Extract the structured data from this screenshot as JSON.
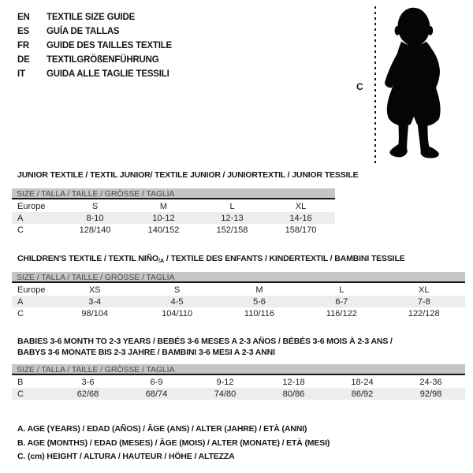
{
  "languages": [
    {
      "code": "EN",
      "label": "TEXTILE SIZE GUIDE"
    },
    {
      "code": "ES",
      "label": "GUÍA DE TALLAS"
    },
    {
      "code": "FR",
      "label": "GUIDE DES TAILLES TEXTILE"
    },
    {
      "code": "DE",
      "label": "TEXTILGRÖßENFÜHRUNG"
    },
    {
      "code": "IT",
      "label": "GUIDA ALLE TAGLIE TESSILI"
    }
  ],
  "figure": {
    "marker_label": "C",
    "image": "black silhouette of a standing toddler"
  },
  "junior": {
    "title": "JUNIOR TEXTILE / TEXTIL JUNIOR/ TEXTILE JUNIOR / JUNIORTEXTIL / JUNIOR TESSILE",
    "size_bar": "SIZE / TALLA / TAILLE / GRÖSSE / TAGLIA",
    "table": {
      "rows": [
        {
          "cells": [
            "Europe",
            "S",
            "M",
            "L",
            "XL"
          ],
          "shaded": false
        },
        {
          "cells": [
            "A",
            "8-10",
            "10-12",
            "12-13",
            "14-16"
          ],
          "shaded": true
        },
        {
          "cells": [
            "C",
            "128/140",
            "140/152",
            "152/158",
            "158/170"
          ],
          "shaded": false
        }
      ]
    }
  },
  "children": {
    "title_pre": "CHILDREN'S TEXTILE / TEXTIL NIÑO",
    "title_sub": "/A",
    "title_post": " / TEXTILE DES ENFANTS / KINDERTEXTIL / BAMBINI TESSILE",
    "size_bar": "SIZE / TALLA / TAILLE / GRÖSSE / TAGLIA",
    "table": {
      "rows": [
        {
          "cells": [
            "Europe",
            "XS",
            "S",
            "M",
            "L",
            "XL"
          ],
          "shaded": false
        },
        {
          "cells": [
            "A",
            "3-4",
            "4-5",
            "5-6",
            "6-7",
            "7-8"
          ],
          "shaded": true
        },
        {
          "cells": [
            "C",
            "98/104",
            "104/110",
            "110/116",
            "116/122",
            "122/128"
          ],
          "shaded": false
        }
      ]
    }
  },
  "babies": {
    "title_line1": "BABIES 3-6 MONTH TO 2-3 YEARS / BEBÉS 3-6 MESES A 2-3 AÑOS / BÉBÉS 3-6 MOIS À 2-3 ANS /",
    "title_line2": "BABYS 3-6 MONATE BIS 2-3 JAHRE / BAMBINI 3-6 MESI A 2-3 ANNI",
    "size_bar": "SIZE / TALLA / TAILLE / GRÖSSE / TAGLIA",
    "table": {
      "rows": [
        {
          "cells": [
            "B",
            "3-6",
            "6-9",
            "9-12",
            "12-18",
            "18-24",
            "24-36"
          ],
          "shaded": false
        },
        {
          "cells": [
            "C",
            "62/68",
            "68/74",
            "74/80",
            "80/86",
            "86/92",
            "92/98"
          ],
          "shaded": true
        }
      ]
    }
  },
  "notes": [
    "A. AGE (YEARS) / EDAD (AÑOS) / ÂGE (ANS) / ALTER (JAHRE) / ETÀ (ANNI)",
    "B. AGE (MONTHS) / EDAD (MESES) / ÂGE (MOIS) / ALTER (MONATE) / ETÀ (MESI)",
    "C. (cm) HEIGHT / ALTURA / HAUTEUR / HÖHE / ALTEZZA"
  ],
  "colors": {
    "size_bar_bg": "#c5c5c5",
    "row_shade": "#ededed",
    "ink": "#161616",
    "size_bar_text": "#4c4c4c"
  }
}
